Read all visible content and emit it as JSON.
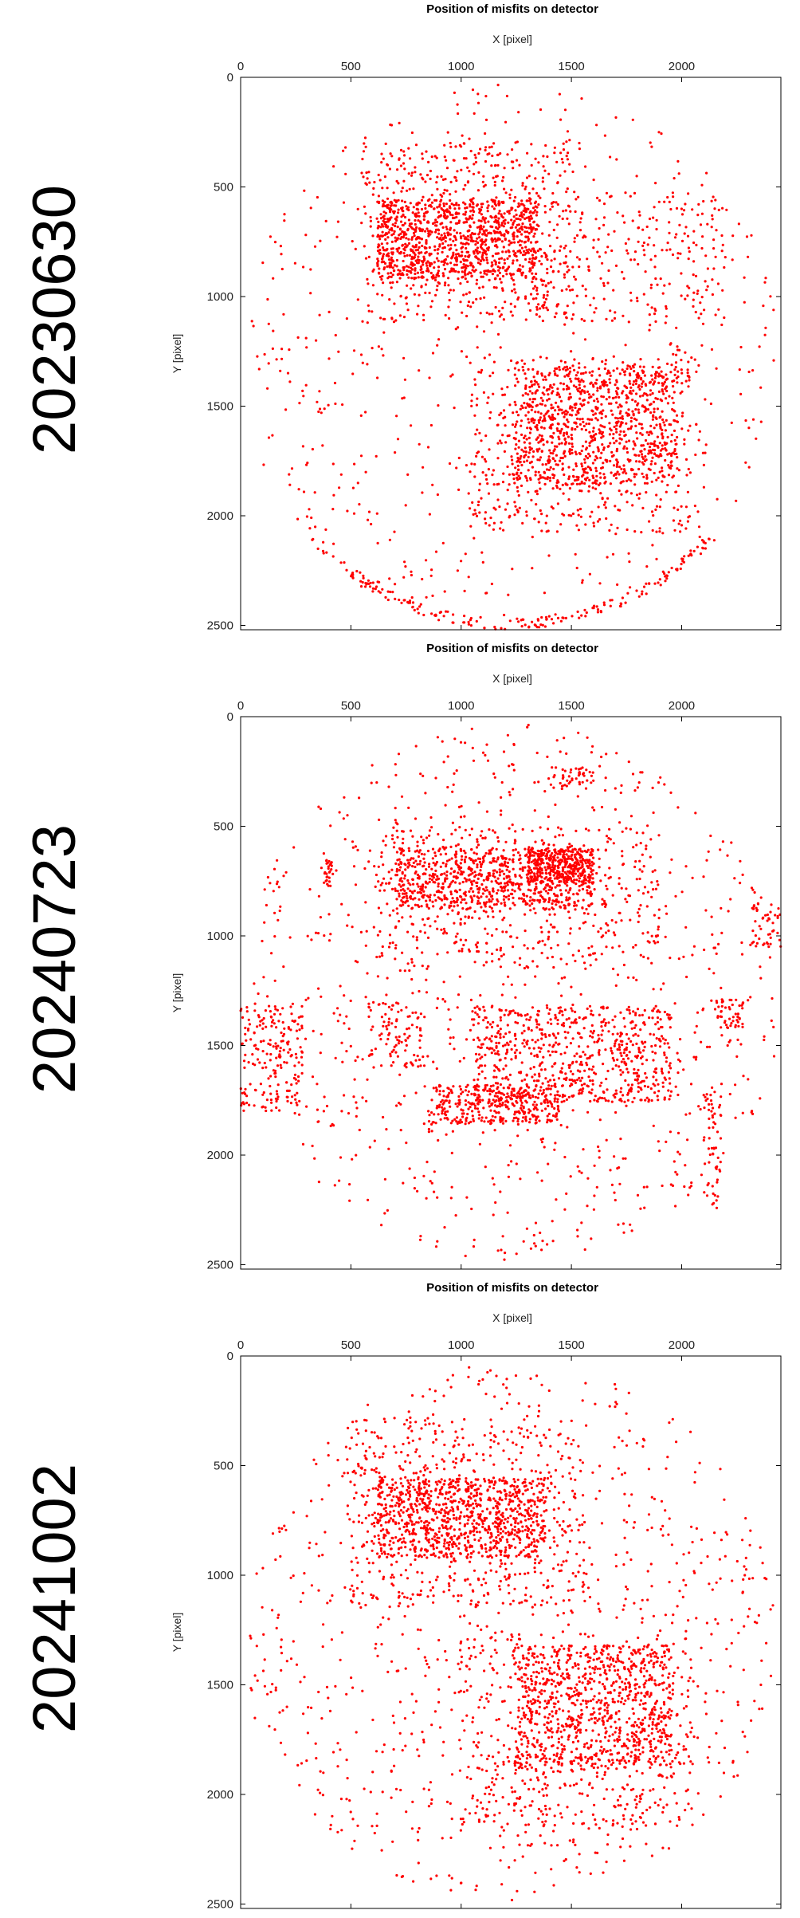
{
  "chart_data": [
    {
      "type": "scatter",
      "title": "Position of misfits on detector",
      "xlabel": "X [pixel]",
      "ylabel": "Y [pixel]",
      "xlim": [
        0,
        2450
      ],
      "ylim": [
        2520,
        0
      ],
      "x_ticks": [
        "0",
        "500",
        "1000",
        "1500",
        "2000"
      ],
      "y_ticks": [
        "0",
        "500",
        "1000",
        "1500",
        "2000",
        "2500"
      ],
      "x_axis_position": "top",
      "y_axis_inverted": true,
      "grid": false,
      "marker_color": "#ff0000",
      "series": [
        {
          "clusters": [
            {
              "x": [
                620,
                1340
              ],
              "y": [
                560,
                920
              ],
              "n": 900,
              "shape": "rect"
            },
            {
              "x": [
                540,
                1500
              ],
              "y": [
                300,
                1120
              ],
              "n": 520,
              "shape": "rect"
            },
            {
              "x": [
                1240,
                1980
              ],
              "y": [
                1320,
                1860
              ],
              "n": 800,
              "shape": "rect"
            },
            {
              "x": [
                1040,
                2080
              ],
              "y": [
                1280,
                2080
              ],
              "n": 480,
              "shape": "rect"
            },
            {
              "x": [
                1300,
                2200
              ],
              "y": [
                520,
                1130
              ],
              "n": 230,
              "shape": "rect"
            },
            {
              "x": [
                40,
                2420
              ],
              "y": [
                20,
                2500
              ],
              "n": 650,
              "shape": "disk"
            },
            {
              "x": [
                0,
                2450
              ],
              "y": [
                2100,
                2520
              ],
              "n": 200,
              "shape": "rim"
            }
          ]
        }
      ],
      "date_label": "20230630"
    },
    {
      "type": "scatter",
      "title": "Position of misfits on detector",
      "xlabel": "X [pixel]",
      "ylabel": "Y [pixel]",
      "xlim": [
        0,
        2450
      ],
      "ylim": [
        2520,
        0
      ],
      "x_ticks": [
        "0",
        "500",
        "1000",
        "1500",
        "2000"
      ],
      "y_ticks": [
        "0",
        "500",
        "1000",
        "1500",
        "2000",
        "2500"
      ],
      "x_axis_position": "top",
      "y_axis_inverted": true,
      "grid": false,
      "marker_color": "#ff0000",
      "series": [
        {
          "clusters": [
            {
              "x": [
                700,
                1600
              ],
              "y": [
                600,
                880
              ],
              "n": 700,
              "shape": "rect"
            },
            {
              "x": [
                1300,
                1600
              ],
              "y": [
                600,
                760
              ],
              "n": 260,
              "shape": "rect"
            },
            {
              "x": [
                620,
                1900
              ],
              "y": [
                500,
                1150
              ],
              "n": 450,
              "shape": "rect"
            },
            {
              "x": [
                1050,
                1950
              ],
              "y": [
                1320,
                1760
              ],
              "n": 650,
              "shape": "rect"
            },
            {
              "x": [
                850,
                1450
              ],
              "y": [
                1680,
                1860
              ],
              "n": 350,
              "shape": "rect"
            },
            {
              "x": [
                0,
                280
              ],
              "y": [
                1320,
                1800
              ],
              "n": 180,
              "shape": "rect"
            },
            {
              "x": [
                2150,
                2280
              ],
              "y": [
                1290,
                1420
              ],
              "n": 50,
              "shape": "rect"
            },
            {
              "x": [
                2320,
                2450
              ],
              "y": [
                850,
                1050
              ],
              "n": 45,
              "shape": "rect"
            },
            {
              "x": [
                1420,
                1600
              ],
              "y": [
                230,
                330
              ],
              "n": 40,
              "shape": "rect"
            },
            {
              "x": [
                580,
                820
              ],
              "y": [
                1300,
                1600
              ],
              "n": 90,
              "shape": "rect"
            },
            {
              "x": [
                380,
                420
              ],
              "y": [
                650,
                780
              ],
              "n": 25,
              "shape": "rect"
            },
            {
              "x": [
                2100,
                2180
              ],
              "y": [
                1700,
                2250
              ],
              "n": 60,
              "shape": "rect"
            },
            {
              "x": [
                40,
                2420
              ],
              "y": [
                20,
                2500
              ],
              "n": 900,
              "shape": "disk"
            }
          ]
        }
      ],
      "date_label": "20240723"
    },
    {
      "type": "scatter",
      "title": "Position of misfits on detector",
      "xlabel": "X [pixel]",
      "ylabel": "Y [pixel]",
      "xlim": [
        0,
        2450
      ],
      "ylim": [
        2520,
        0
      ],
      "x_ticks": [
        "0",
        "500",
        "1000",
        "1500",
        "2000"
      ],
      "y_ticks": [
        "0",
        "500",
        "1000",
        "1500",
        "2000",
        "2500"
      ],
      "x_axis_position": "top",
      "y_axis_inverted": true,
      "grid": false,
      "marker_color": "#ff0000",
      "series": [
        {
          "clusters": [
            {
              "x": [
                620,
                1380
              ],
              "y": [
                560,
                920
              ],
              "n": 800,
              "shape": "rect"
            },
            {
              "x": [
                480,
                1560
              ],
              "y": [
                280,
                1150
              ],
              "n": 520,
              "shape": "rect"
            },
            {
              "x": [
                1240,
                1960
              ],
              "y": [
                1320,
                1880
              ],
              "n": 780,
              "shape": "rect"
            },
            {
              "x": [
                980,
                2050
              ],
              "y": [
                1260,
                2150
              ],
              "n": 460,
              "shape": "rect"
            },
            {
              "x": [
                40,
                2420
              ],
              "y": [
                20,
                2500
              ],
              "n": 900,
              "shape": "disk"
            }
          ]
        }
      ],
      "date_label": "20241002"
    }
  ]
}
